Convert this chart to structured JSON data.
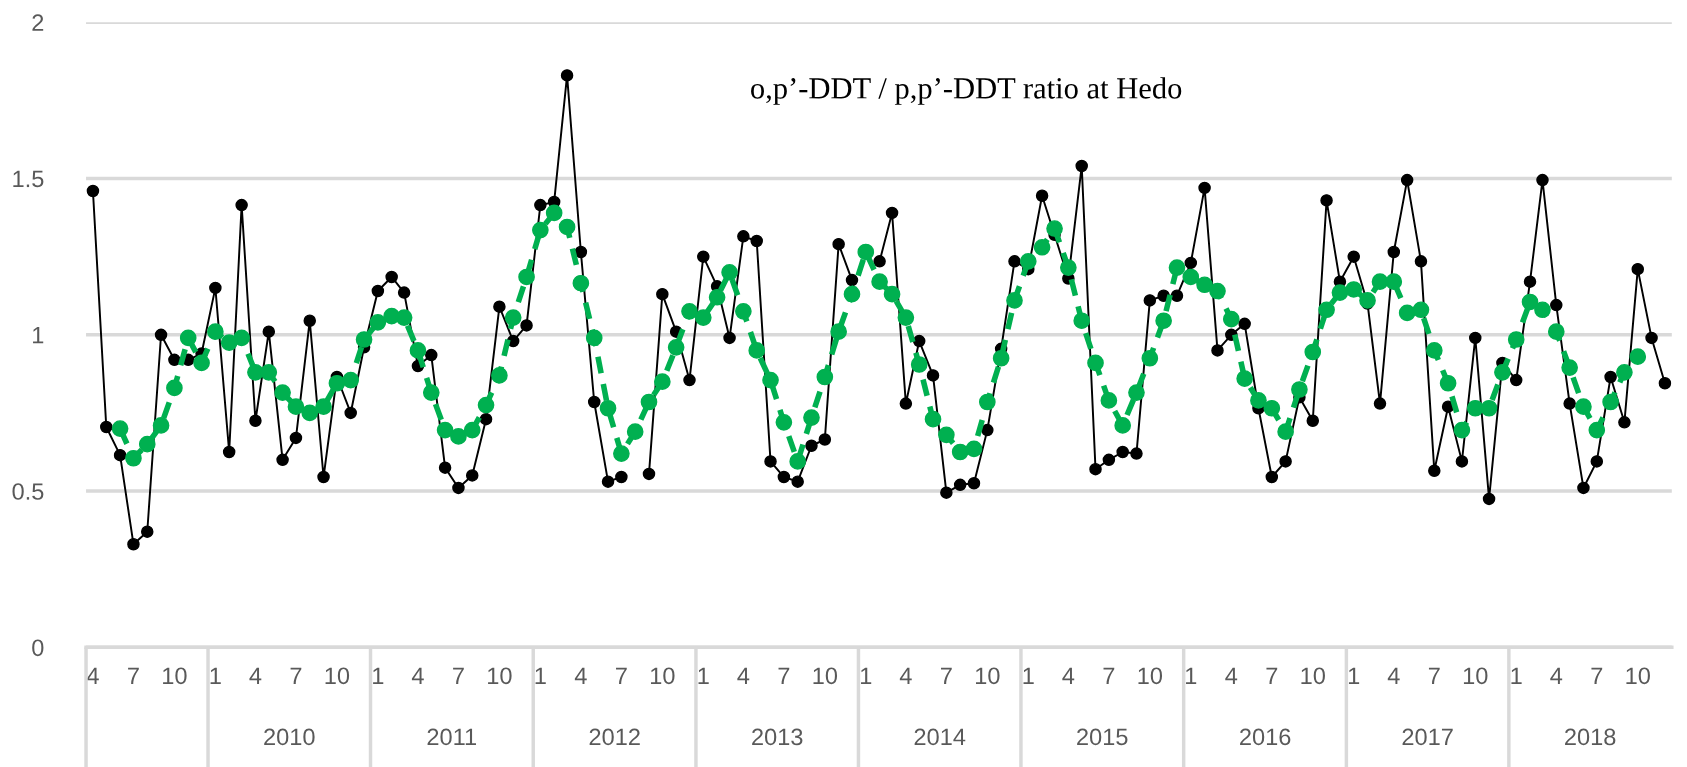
{
  "chart_data": {
    "type": "line",
    "title": "o,p’-DDT / p,p’-DDT ratio at Hedo",
    "x": [
      "2009-04",
      "2009-05",
      "2009-06",
      "2009-07",
      "2009-08",
      "2009-09",
      "2009-10",
      "2009-11",
      "2009-12",
      "2010-01",
      "2010-02",
      "2010-03",
      "2010-04",
      "2010-05",
      "2010-06",
      "2010-07",
      "2010-08",
      "2010-09",
      "2010-10",
      "2010-11",
      "2010-12",
      "2011-01",
      "2011-02",
      "2011-03",
      "2011-04",
      "2011-05",
      "2011-06",
      "2011-07",
      "2011-08",
      "2011-09",
      "2011-10",
      "2011-11",
      "2011-12",
      "2012-01",
      "2012-02",
      "2012-03",
      "2012-04",
      "2012-05",
      "2012-06",
      "2012-07",
      "2012-08",
      "2012-09",
      "2012-10",
      "2012-11",
      "2012-12",
      "2013-01",
      "2013-02",
      "2013-03",
      "2013-04",
      "2013-05",
      "2013-06",
      "2013-07",
      "2013-08",
      "2013-09",
      "2013-10",
      "2013-11",
      "2013-12",
      "2014-01",
      "2014-02",
      "2014-03",
      "2014-04",
      "2014-05",
      "2014-06",
      "2014-07",
      "2014-08",
      "2014-09",
      "2014-10",
      "2014-11",
      "2014-12",
      "2015-01",
      "2015-02",
      "2015-03",
      "2015-04",
      "2015-05",
      "2015-06",
      "2015-07",
      "2015-08",
      "2015-09",
      "2015-10",
      "2015-11",
      "2015-12",
      "2016-01",
      "2016-02",
      "2016-03",
      "2016-04",
      "2016-05",
      "2016-06",
      "2016-07",
      "2016-08",
      "2016-09",
      "2016-10",
      "2016-11",
      "2016-12",
      "2017-01",
      "2017-02",
      "2017-03",
      "2017-04",
      "2017-05",
      "2017-06",
      "2017-07",
      "2017-08",
      "2017-09",
      "2017-10",
      "2017-11",
      "2017-12",
      "2018-01",
      "2018-02",
      "2018-03",
      "2018-04",
      "2018-05",
      "2018-06",
      "2018-07",
      "2018-08",
      "2018-09",
      "2018-10",
      "2018-11",
      "2018-12"
    ],
    "series": [
      {
        "color": "#000000",
        "line_style": "solid",
        "values": [
          1.46,
          0.705,
          0.615,
          0.33,
          0.37,
          1.0,
          0.92,
          0.92,
          0.94,
          1.15,
          0.625,
          1.415,
          0.725,
          1.01,
          0.6,
          0.67,
          1.045,
          0.545,
          0.865,
          0.75,
          0.96,
          1.14,
          1.185,
          1.135,
          0.9,
          0.935,
          0.575,
          0.51,
          0.55,
          0.73,
          1.09,
          0.98,
          1.03,
          1.415,
          1.425,
          1.83,
          1.265,
          0.785,
          0.53,
          0.545,
          null,
          0.555,
          1.13,
          1.01,
          0.855,
          1.25,
          1.155,
          0.99,
          1.315,
          1.3,
          0.595,
          0.545,
          0.53,
          0.645,
          0.665,
          1.29,
          1.175,
          null,
          1.235,
          1.39,
          0.78,
          0.98,
          0.87,
          0.495,
          0.52,
          0.525,
          0.695,
          0.955,
          1.235,
          1.21,
          1.445,
          1.32,
          1.18,
          1.54,
          0.57,
          0.6,
          0.625,
          0.62,
          1.11,
          1.125,
          1.125,
          1.23,
          1.47,
          0.95,
          1.0,
          1.035,
          0.765,
          0.545,
          0.595,
          0.8,
          0.725,
          1.43,
          1.17,
          1.25,
          1.1,
          0.78,
          1.265,
          1.495,
          1.235,
          0.565,
          0.77,
          0.595,
          0.99,
          0.475,
          0.91,
          0.855,
          1.17,
          1.495,
          1.095,
          0.78,
          0.51,
          0.595,
          0.865,
          0.72,
          1.21,
          0.99,
          0.845
        ]
      },
      {
        "color": "#00b050",
        "line_style": "dashed",
        "values": [
          null,
          null,
          0.7,
          0.605,
          0.65,
          0.71,
          0.83,
          0.99,
          0.91,
          1.01,
          0.975,
          0.99,
          0.88,
          0.88,
          0.815,
          0.77,
          0.75,
          0.77,
          0.845,
          0.855,
          0.985,
          1.04,
          1.06,
          1.055,
          0.95,
          0.815,
          0.695,
          0.675,
          0.695,
          0.775,
          0.87,
          1.055,
          1.185,
          1.335,
          1.39,
          1.345,
          1.165,
          0.99,
          0.765,
          0.62,
          0.69,
          0.785,
          0.85,
          0.96,
          1.075,
          1.055,
          1.12,
          1.2,
          1.075,
          0.95,
          0.855,
          0.72,
          0.595,
          0.735,
          0.865,
          1.01,
          1.13,
          1.265,
          1.17,
          1.13,
          1.055,
          0.905,
          0.73,
          0.68,
          0.625,
          0.635,
          0.785,
          0.925,
          1.11,
          1.235,
          1.28,
          1.34,
          1.215,
          1.045,
          0.91,
          0.79,
          0.71,
          0.815,
          0.925,
          1.045,
          1.215,
          1.185,
          1.16,
          1.14,
          1.05,
          0.86,
          0.79,
          0.765,
          0.69,
          0.825,
          0.945,
          1.08,
          1.135,
          1.145,
          1.11,
          1.17,
          1.17,
          1.07,
          1.08,
          0.95,
          0.845,
          0.695,
          0.765,
          0.765,
          0.88,
          0.985,
          1.105,
          1.08,
          1.01,
          0.895,
          0.77,
          0.695,
          0.785,
          0.88,
          0.93,
          null,
          null
        ]
      }
    ],
    "marker": "circle",
    "grid": "y",
    "x2lim": [
      "2009-03-16T12:00",
      "2018-12-16T12:00"
    ],
    "ylim": [
      0,
      2
    ],
    "yticks": [
      0,
      0.5,
      1,
      1.5,
      2
    ],
    "xlim": [
      "2009-03-16T12:00",
      "2018-12-16T12:00"
    ],
    "xticks": [
      {
        "value": "2009-04",
        "label": "4"
      },
      {
        "value": "2009-07",
        "label": "7"
      },
      {
        "value": "2009-10",
        "label": "10"
      },
      {
        "value": "2010-01",
        "label": "1"
      },
      {
        "value": "2010-04",
        "label": "4"
      },
      {
        "value": "2010-07",
        "label": "7"
      },
      {
        "value": "2010-10",
        "label": "10"
      },
      {
        "value": "2011-01",
        "label": "1"
      },
      {
        "value": "2011-04",
        "label": "4"
      },
      {
        "value": "2011-07",
        "label": "7"
      },
      {
        "value": "2011-10",
        "label": "10"
      },
      {
        "value": "2012-01",
        "label": "1"
      },
      {
        "value": "2012-04",
        "label": "4"
      },
      {
        "value": "2012-07",
        "label": "7"
      },
      {
        "value": "2012-10",
        "label": "10"
      },
      {
        "value": "2013-01",
        "label": "1"
      },
      {
        "value": "2013-04",
        "label": "4"
      },
      {
        "value": "2013-07",
        "label": "7"
      },
      {
        "value": "2013-10",
        "label": "10"
      },
      {
        "value": "2014-01",
        "label": "1"
      },
      {
        "value": "2014-04",
        "label": "4"
      },
      {
        "value": "2014-07",
        "label": "7"
      },
      {
        "value": "2014-10",
        "label": "10"
      },
      {
        "value": "2015-01",
        "label": "1"
      },
      {
        "value": "2015-04",
        "label": "4"
      },
      {
        "value": "2015-07",
        "label": "7"
      },
      {
        "value": "2015-10",
        "label": "10"
      },
      {
        "value": "2016-01",
        "label": "1"
      },
      {
        "value": "2016-04",
        "label": "4"
      },
      {
        "value": "2016-07",
        "label": "7"
      },
      {
        "value": "2016-10",
        "label": "10"
      },
      {
        "value": "2017-01",
        "label": "1"
      },
      {
        "value": "2017-04",
        "label": "4"
      },
      {
        "value": "2017-07",
        "label": "7"
      },
      {
        "value": "2017-10",
        "label": "10"
      },
      {
        "value": "2018-01",
        "label": "1"
      },
      {
        "value": "2018-04",
        "label": "4"
      },
      {
        "value": "2018-07",
        "label": "7"
      },
      {
        "value": "2018-10",
        "label": "10"
      }
    ],
    "x2ticks": [
      {
        "value": "2010-06-16",
        "label": "2010"
      },
      {
        "value": "2011-06-16",
        "label": "2011"
      },
      {
        "value": "2012-06-16",
        "label": "2012"
      },
      {
        "value": "2013-06-16",
        "label": "2013"
      },
      {
        "value": "2014-06-16",
        "label": "2014"
      },
      {
        "value": "2015-06-16",
        "label": "2015"
      },
      {
        "value": "2016-06-16",
        "label": "2016"
      },
      {
        "value": "2017-06-16",
        "label": "2017"
      },
      {
        "value": "2018-06-16",
        "label": "2018"
      }
    ]
  }
}
